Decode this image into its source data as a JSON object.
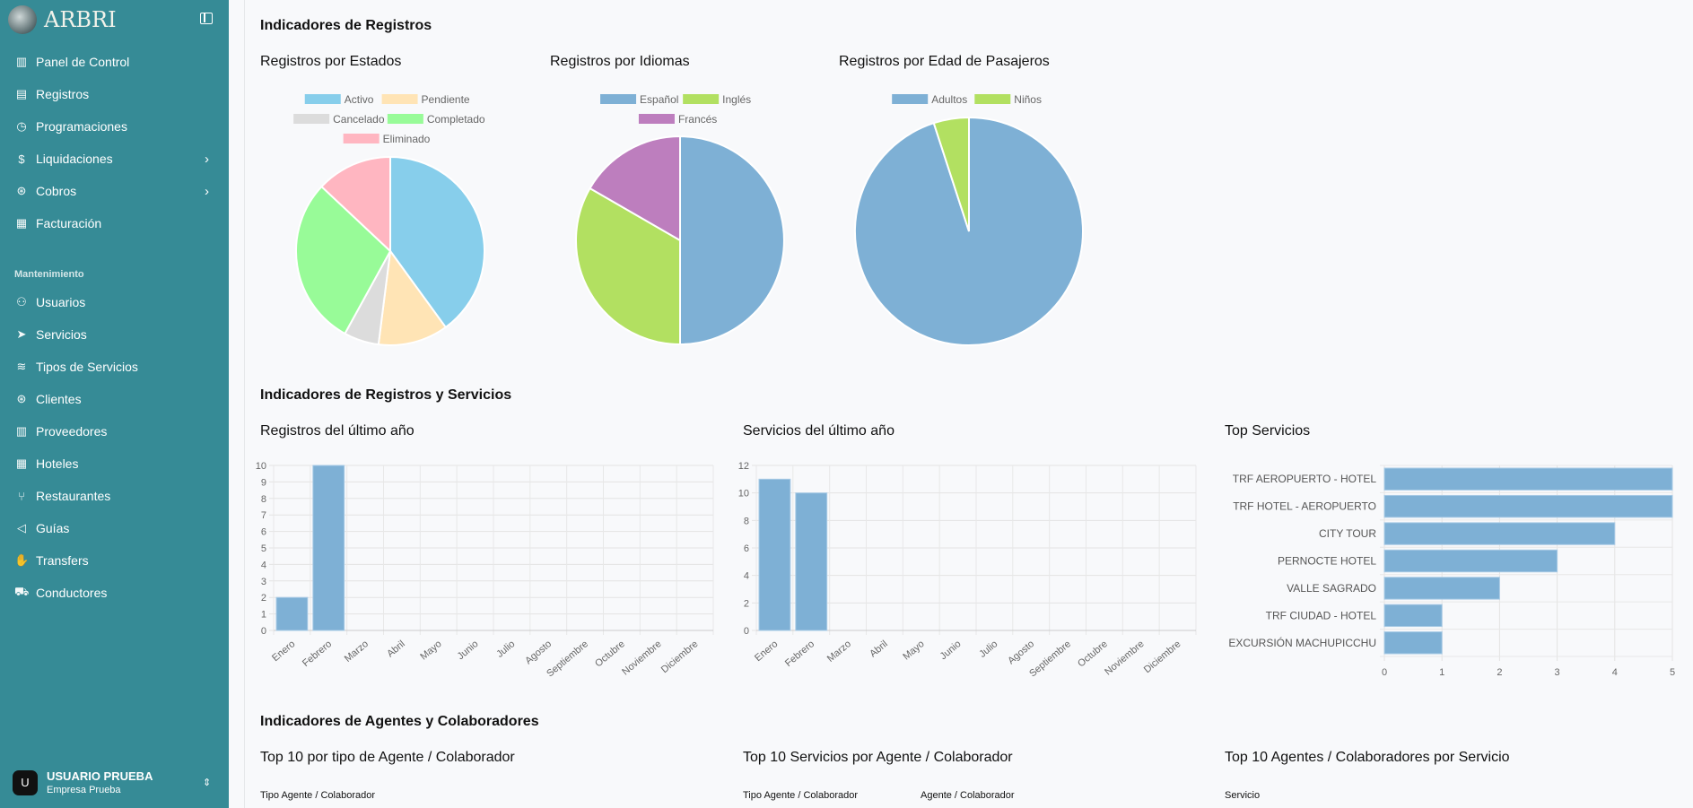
{
  "app": {
    "name": "ARBRI"
  },
  "sidebar": {
    "items": [
      {
        "label": "Panel de Control",
        "icon": "bar-chart-icon",
        "glyph": "▥"
      },
      {
        "label": "Registros",
        "icon": "clipboard-icon",
        "glyph": "▤"
      },
      {
        "label": "Programaciones",
        "icon": "calendar-clock-icon",
        "glyph": "◷"
      },
      {
        "label": "Liquidaciones",
        "icon": "dollar-icon",
        "glyph": "$",
        "chevron": true
      },
      {
        "label": "Cobros",
        "icon": "handshake-icon",
        "glyph": "⊛",
        "chevron": true
      },
      {
        "label": "Facturación",
        "icon": "notebook-icon",
        "glyph": "▦"
      }
    ],
    "section_label": "Mantenimiento",
    "maint_items": [
      {
        "label": "Usuarios",
        "icon": "users-icon",
        "glyph": "⚇"
      },
      {
        "label": "Servicios",
        "icon": "send-icon",
        "glyph": "➤"
      },
      {
        "label": "Tipos de Servicios",
        "icon": "layers-icon",
        "glyph": "≋"
      },
      {
        "label": "Clientes",
        "icon": "handshake-icon",
        "glyph": "⊛"
      },
      {
        "label": "Proveedores",
        "icon": "building-icon",
        "glyph": "▥"
      },
      {
        "label": "Hoteles",
        "icon": "hotel-icon",
        "glyph": "▦"
      },
      {
        "label": "Restaurantes",
        "icon": "utensils-icon",
        "glyph": "⑂"
      },
      {
        "label": "Guías",
        "icon": "megaphone-icon",
        "glyph": "◁"
      },
      {
        "label": "Transfers",
        "icon": "hand-icon",
        "glyph": "✋"
      },
      {
        "label": "Conductores",
        "icon": "car-icon",
        "glyph": "⛟"
      }
    ],
    "user": {
      "initial": "U",
      "name": "USUARIO PRUEBA",
      "company": "Empresa Prueba"
    }
  },
  "sections": {
    "s1": "Indicadores de Registros",
    "s2": "Indicadores de Registros y Servicios",
    "s3": "Indicadores de Agentes y Colaboradores"
  },
  "agents": {
    "t1": "Top 10 por tipo de Agente / Colaborador",
    "t2": "Top 10 Servicios por Agente / Colaborador",
    "t3": "Top 10 Agentes / Colaboradores por Servicio",
    "h1": "Tipo Agente / Colaborador",
    "h2a": "Tipo Agente / Colaborador",
    "h2b": "Agente / Colaborador",
    "h3": "Servicio"
  },
  "chart_data": [
    {
      "type": "pie",
      "title": "Registros por Estados",
      "labels": [
        "Activo",
        "Pendiente",
        "Cancelado",
        "Completado",
        "Eliminado"
      ],
      "values": [
        40,
        12,
        6,
        29,
        13
      ],
      "colors": [
        "#87ceeb",
        "#ffe4b5",
        "#dcdcdc",
        "#98fb98",
        "#ffb6c1"
      ],
      "legend": "top"
    },
    {
      "type": "pie",
      "title": "Registros por Idiomas",
      "labels": [
        "Español",
        "Inglés",
        "Francés"
      ],
      "values": [
        6,
        4,
        2
      ],
      "colors": [
        "#7eb0d5",
        "#b2e061",
        "#bd7ebe"
      ],
      "legend": "top"
    },
    {
      "type": "pie",
      "title": "Registros por Edad de Pasajeros",
      "labels": [
        "Adultos",
        "Niños"
      ],
      "values": [
        95,
        5
      ],
      "colors": [
        "#7eb0d5",
        "#b2e061"
      ],
      "legend": "top"
    },
    {
      "type": "bar",
      "title": "Registros del último año",
      "categories": [
        "Enero",
        "Febrero",
        "Marzo",
        "Abril",
        "Mayo",
        "Junio",
        "Julio",
        "Agosto",
        "Septiembre",
        "Octubre",
        "Noviembre",
        "Diciembre"
      ],
      "values": [
        2,
        10,
        0,
        0,
        0,
        0,
        0,
        0,
        0,
        0,
        0,
        0
      ],
      "ylim": [
        0,
        10
      ],
      "yticks": [
        0,
        1,
        2,
        3,
        4,
        5,
        6,
        7,
        8,
        9,
        10
      ],
      "color": "#7eb0d5"
    },
    {
      "type": "bar",
      "title": "Servicios del último año",
      "categories": [
        "Enero",
        "Febrero",
        "Marzo",
        "Abril",
        "Mayo",
        "Junio",
        "Julio",
        "Agosto",
        "Septiembre",
        "Octubre",
        "Noviembre",
        "Diciembre"
      ],
      "values": [
        11,
        10,
        0,
        0,
        0,
        0,
        0,
        0,
        0,
        0,
        0,
        0
      ],
      "ylim": [
        0,
        12
      ],
      "yticks": [
        0,
        2,
        4,
        6,
        8,
        10,
        12
      ],
      "color": "#7eb0d5"
    },
    {
      "type": "bar",
      "orientation": "horizontal",
      "title": "Top Servicios",
      "categories": [
        "TRF AEROPUERTO - HOTEL",
        "TRF HOTEL - AEROPUERTO",
        "CITY TOUR",
        "PERNOCTE HOTEL",
        "VALLE SAGRADO",
        "TRF CIUDAD - HOTEL",
        "EXCURSIÓN MACHUPICCHU"
      ],
      "values": [
        5,
        5,
        4,
        3,
        2,
        1,
        1
      ],
      "xlim": [
        0,
        5
      ],
      "xticks": [
        0,
        1,
        2,
        3,
        4,
        5
      ],
      "color": "#7eb0d5"
    }
  ]
}
